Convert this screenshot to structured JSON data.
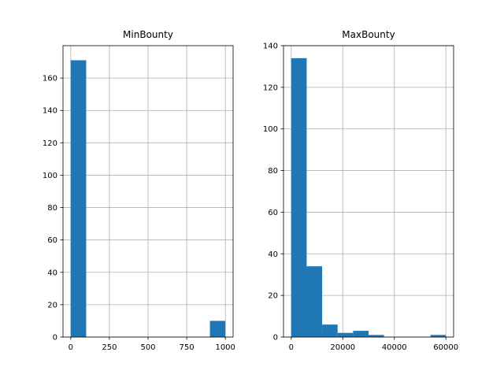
{
  "chart_data": [
    {
      "type": "bar",
      "title": "MinBounty",
      "xlim": [
        -50,
        1050
      ],
      "ylim": [
        0,
        180
      ],
      "xticks": [
        0,
        250,
        500,
        750,
        1000
      ],
      "yticks": [
        0,
        20,
        40,
        60,
        80,
        100,
        120,
        140,
        160
      ],
      "grid": true,
      "bins": [
        {
          "x0": 0,
          "x1": 100,
          "count": 171
        },
        {
          "x0": 100,
          "x1": 200,
          "count": 0
        },
        {
          "x0": 200,
          "x1": 300,
          "count": 0
        },
        {
          "x0": 300,
          "x1": 400,
          "count": 0
        },
        {
          "x0": 400,
          "x1": 500,
          "count": 0
        },
        {
          "x0": 500,
          "x1": 600,
          "count": 0
        },
        {
          "x0": 600,
          "x1": 700,
          "count": 0
        },
        {
          "x0": 700,
          "x1": 800,
          "count": 0
        },
        {
          "x0": 800,
          "x1": 900,
          "count": 0
        },
        {
          "x0": 900,
          "x1": 1000,
          "count": 10
        }
      ],
      "bar_color": "#1f77b4"
    },
    {
      "type": "bar",
      "title": "MaxBounty",
      "xlim": [
        -3000,
        63000
      ],
      "ylim": [
        0,
        140
      ],
      "xticks": [
        0,
        20000,
        40000,
        60000
      ],
      "yticks": [
        0,
        20,
        40,
        60,
        80,
        100,
        120,
        140
      ],
      "grid": true,
      "bins": [
        {
          "x0": 0,
          "x1": 6000,
          "count": 134
        },
        {
          "x0": 6000,
          "x1": 12000,
          "count": 34
        },
        {
          "x0": 12000,
          "x1": 18000,
          "count": 6
        },
        {
          "x0": 18000,
          "x1": 24000,
          "count": 2
        },
        {
          "x0": 24000,
          "x1": 30000,
          "count": 3
        },
        {
          "x0": 30000,
          "x1": 36000,
          "count": 1
        },
        {
          "x0": 36000,
          "x1": 42000,
          "count": 0
        },
        {
          "x0": 42000,
          "x1": 48000,
          "count": 0
        },
        {
          "x0": 48000,
          "x1": 54000,
          "count": 0
        },
        {
          "x0": 54000,
          "x1": 60000,
          "count": 1
        }
      ],
      "bar_color": "#1f77b4"
    }
  ]
}
